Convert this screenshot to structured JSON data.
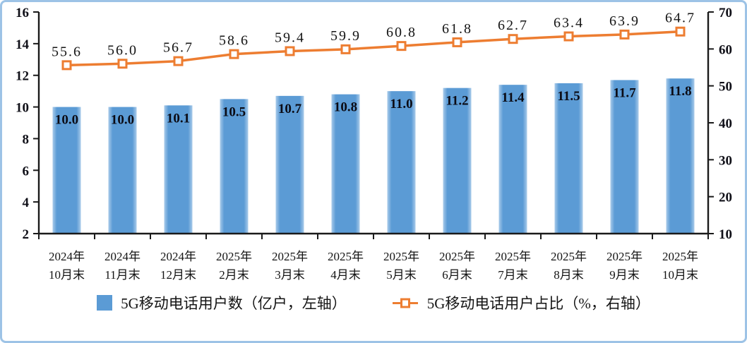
{
  "panel": {
    "border_color": "#9DC3E6",
    "background_color": "#FFFFFF"
  },
  "chart_data": {
    "type": "combo",
    "combo_types": [
      "bar",
      "line"
    ],
    "title": "",
    "grid": false,
    "legend_position": "bottom",
    "categories": [
      [
        "2024年",
        "10月末"
      ],
      [
        "2024年",
        "11月末"
      ],
      [
        "2024年",
        "12月末"
      ],
      [
        "2025年",
        "2月末"
      ],
      [
        "2025年",
        "3月末"
      ],
      [
        "2025年",
        "4月末"
      ],
      [
        "2025年",
        "5月末"
      ],
      [
        "2025年",
        "6月末"
      ],
      [
        "2025年",
        "7月末"
      ],
      [
        "2025年",
        "8月末"
      ],
      [
        "2025年",
        "9月末"
      ],
      [
        "2025年",
        "10月末"
      ]
    ],
    "series": [
      {
        "name": "5G移动电话用户数（亿户，左轴）",
        "type": "bar",
        "axis": "left",
        "color": "#5B9BD5",
        "edge_color": "#A9CBEA",
        "values": [
          10.0,
          10.0,
          10.1,
          10.5,
          10.7,
          10.8,
          11.0,
          11.2,
          11.4,
          11.5,
          11.7,
          11.8
        ],
        "labels": [
          "10.0",
          "10.0",
          "10.1",
          "10.5",
          "10.7",
          "10.8",
          "11.0",
          "11.2",
          "11.4",
          "11.5",
          "11.7",
          "11.8"
        ]
      },
      {
        "name": "5G移动电话用户占比（%，右轴）",
        "type": "line",
        "axis": "right",
        "color": "#ED7D31",
        "marker": "square-white-fill",
        "values": [
          55.6,
          56.0,
          56.7,
          58.6,
          59.4,
          59.9,
          60.8,
          61.8,
          62.7,
          63.4,
          63.9,
          64.7
        ],
        "labels": [
          "55.6",
          "56.0",
          "56.7",
          "58.6",
          "59.4",
          "59.9",
          "60.8",
          "61.8",
          "62.7",
          "63.4",
          "63.9",
          "64.7"
        ]
      }
    ],
    "left_axis": {
      "min": 2,
      "max": 16,
      "step": 2,
      "ticks": [
        16,
        14,
        12,
        10,
        8,
        6,
        4,
        2
      ]
    },
    "right_axis": {
      "min": 10,
      "max": 70,
      "step": 10,
      "ticks": [
        70,
        60,
        50,
        40,
        30,
        20,
        10
      ]
    }
  }
}
